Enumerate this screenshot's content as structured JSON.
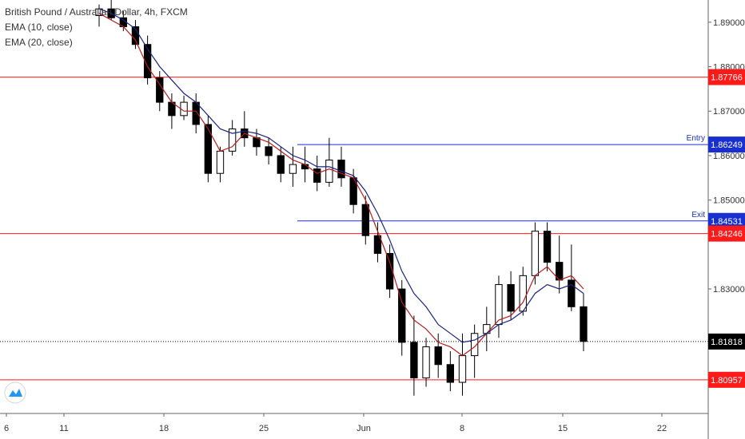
{
  "legend": {
    "title": "British Pound / Australian Dollar, 4h, FXCM",
    "ema1": "EMA (10, close)",
    "ema2": "EMA (20, close)"
  },
  "logo_icon": "tradingview-cloud-icon",
  "colors": {
    "up_candle": "#ffffff",
    "down_candle": "#000000",
    "ema10": "#b71c1c",
    "ema20": "#1a237e",
    "red_line": "#ff1a1a",
    "blue_line": "#1a2fd0",
    "price_tag": "#000000"
  },
  "chart_data": {
    "type": "candlestick",
    "x_ticks": [
      "6",
      "11",
      "18",
      "25",
      "Jun",
      "8",
      "15",
      "22"
    ],
    "y_ticks": [
      "1.89000",
      "1.88000",
      "1.87000",
      "1.86000",
      "1.85000",
      "1.83000"
    ],
    "ylim": [
      1.802,
      1.895
    ],
    "horizontal_lines": [
      {
        "value": 1.87766,
        "label": "1.87766",
        "color": "red"
      },
      {
        "value": 1.86249,
        "label": "1.86249",
        "color": "blue",
        "note": "Entry"
      },
      {
        "value": 1.84531,
        "label": "1.84531",
        "color": "blue",
        "note": "Exit"
      },
      {
        "value": 1.84246,
        "label": "1.84246",
        "color": "red"
      },
      {
        "value": 1.81818,
        "label": "1.81818",
        "color": "black",
        "kind": "last_price"
      },
      {
        "value": 1.80957,
        "label": "1.80957",
        "color": "red"
      }
    ],
    "series": [
      {
        "name": "EMA (10, close)",
        "values": [
          1.892,
          1.8905,
          1.889,
          1.886,
          1.88,
          1.876,
          1.872,
          1.87,
          1.87,
          1.866,
          1.861,
          1.862,
          1.865,
          1.864,
          1.863,
          1.861,
          1.859,
          1.858,
          1.856,
          1.857,
          1.856,
          1.855,
          1.85,
          1.843,
          1.836,
          1.827,
          1.823,
          1.821,
          1.818,
          1.817,
          1.815,
          1.817,
          1.82,
          1.823,
          1.824,
          1.827,
          1.833,
          1.835,
          1.832,
          1.833,
          1.83
        ]
      },
      {
        "name": "EMA (20, close)",
        "values": [
          1.893,
          1.892,
          1.8905,
          1.8885,
          1.884,
          1.88,
          1.877,
          1.874,
          1.872,
          1.869,
          1.866,
          1.865,
          1.8655,
          1.865,
          1.864,
          1.862,
          1.86,
          1.859,
          1.8575,
          1.8575,
          1.8565,
          1.8555,
          1.852,
          1.847,
          1.841,
          1.834,
          1.829,
          1.826,
          1.822,
          1.82,
          1.818,
          1.8185,
          1.82,
          1.822,
          1.823,
          1.825,
          1.829,
          1.831,
          1.83,
          1.831,
          1.829
        ]
      }
    ],
    "candles_ohlc": [
      [
        1.8915,
        1.894,
        1.889,
        1.893
      ],
      [
        1.893,
        1.895,
        1.8905,
        1.891
      ],
      [
        1.891,
        1.8925,
        1.888,
        1.889
      ],
      [
        1.889,
        1.8905,
        1.884,
        1.885
      ],
      [
        1.885,
        1.887,
        1.876,
        1.8775
      ],
      [
        1.8775,
        1.879,
        1.87,
        1.872
      ],
      [
        1.872,
        1.874,
        1.866,
        1.869
      ],
      [
        1.869,
        1.8735,
        1.868,
        1.872
      ],
      [
        1.872,
        1.874,
        1.865,
        1.867
      ],
      [
        1.867,
        1.869,
        1.854,
        1.856
      ],
      [
        1.856,
        1.862,
        1.854,
        1.861
      ],
      [
        1.861,
        1.868,
        1.86,
        1.866
      ],
      [
        1.866,
        1.87,
        1.862,
        1.864
      ],
      [
        1.864,
        1.866,
        1.86,
        1.862
      ],
      [
        1.862,
        1.864,
        1.858,
        1.86
      ],
      [
        1.86,
        1.862,
        1.854,
        1.856
      ],
      [
        1.856,
        1.862,
        1.853,
        1.858
      ],
      [
        1.858,
        1.862,
        1.854,
        1.857
      ],
      [
        1.857,
        1.86,
        1.852,
        1.854
      ],
      [
        1.854,
        1.864,
        1.853,
        1.859
      ],
      [
        1.859,
        1.862,
        1.853,
        1.855
      ],
      [
        1.855,
        1.857,
        1.847,
        1.849
      ],
      [
        1.849,
        1.851,
        1.84,
        1.842
      ],
      [
        1.842,
        1.845,
        1.836,
        1.838
      ],
      [
        1.838,
        1.84,
        1.828,
        1.83
      ],
      [
        1.83,
        1.832,
        1.815,
        1.818
      ],
      [
        1.818,
        1.824,
        1.806,
        1.81
      ],
      [
        1.81,
        1.819,
        1.808,
        1.817
      ],
      [
        1.817,
        1.82,
        1.81,
        1.813
      ],
      [
        1.813,
        1.816,
        1.807,
        1.809
      ],
      [
        1.809,
        1.82,
        1.806,
        1.815
      ],
      [
        1.815,
        1.822,
        1.81,
        1.82
      ],
      [
        1.82,
        1.826,
        1.816,
        1.822
      ],
      [
        1.822,
        1.833,
        1.819,
        1.831
      ],
      [
        1.831,
        1.834,
        1.823,
        1.825
      ],
      [
        1.825,
        1.835,
        1.824,
        1.833
      ],
      [
        1.833,
        1.845,
        1.831,
        1.843
      ],
      [
        1.843,
        1.845,
        1.834,
        1.836
      ],
      [
        1.836,
        1.842,
        1.829,
        1.832
      ],
      [
        1.832,
        1.84,
        1.825,
        1.826
      ],
      [
        1.826,
        1.829,
        1.816,
        1.8182
      ]
    ]
  }
}
